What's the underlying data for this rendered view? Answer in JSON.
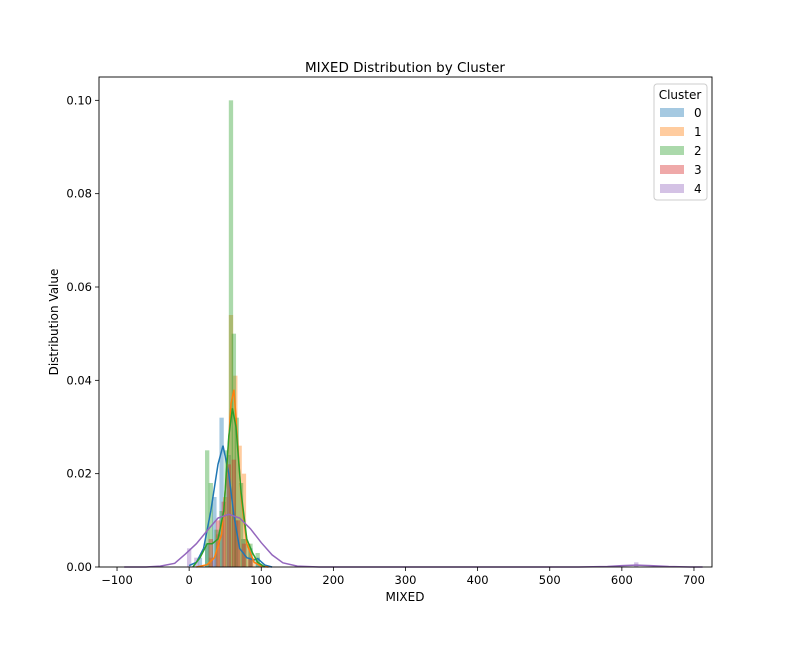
{
  "chart_data": {
    "type": "histogram",
    "title": "MIXED Distribution by Cluster",
    "xlabel": "MIXED",
    "ylabel": "Distribution Value",
    "xlim": [
      -125,
      725
    ],
    "ylim": [
      0,
      0.105
    ],
    "xticks": [
      -100,
      0,
      100,
      200,
      300,
      400,
      500,
      600,
      700
    ],
    "yticks": [
      0.0,
      0.02,
      0.04,
      0.06,
      0.08,
      0.1
    ],
    "xtick_labels": [
      "−100",
      "0",
      "100",
      "200",
      "300",
      "400",
      "500",
      "600",
      "700"
    ],
    "ytick_labels": [
      "0.00",
      "0.02",
      "0.04",
      "0.06",
      "0.08",
      "0.10"
    ],
    "grid": false,
    "legend": {
      "title": "Cluster",
      "position": "top-right"
    },
    "series": [
      {
        "name": "0",
        "color": "#1f77b4",
        "hist": [
          [
            15,
            0.002
          ],
          [
            25,
            0.005
          ],
          [
            35,
            0.015
          ],
          [
            45,
            0.032
          ],
          [
            55,
            0.024
          ],
          [
            65,
            0.01
          ],
          [
            75,
            0.006
          ],
          [
            85,
            0.004
          ],
          [
            95,
            0.002
          ]
        ],
        "kde": [
          [
            0,
            0.0003
          ],
          [
            10,
            0.001
          ],
          [
            20,
            0.004
          ],
          [
            30,
            0.012
          ],
          [
            40,
            0.022
          ],
          [
            47,
            0.026
          ],
          [
            55,
            0.02
          ],
          [
            62,
            0.011
          ],
          [
            70,
            0.004
          ],
          [
            80,
            0.002
          ],
          [
            90,
            0.0015
          ],
          [
            95,
            0.0018
          ],
          [
            105,
            0.0004
          ],
          [
            115,
            0
          ]
        ]
      },
      {
        "name": "1",
        "color": "#ff7f0e",
        "hist": [
          [
            30,
            0.002
          ],
          [
            40,
            0.007
          ],
          [
            50,
            0.015
          ],
          [
            58,
            0.054
          ],
          [
            64,
            0.041
          ],
          [
            70,
            0.026
          ],
          [
            76,
            0.02
          ],
          [
            82,
            0.005
          ],
          [
            88,
            0.002
          ]
        ],
        "kde": [
          [
            10,
            0
          ],
          [
            25,
            0.0005
          ],
          [
            35,
            0.002
          ],
          [
            45,
            0.007
          ],
          [
            52,
            0.02
          ],
          [
            58,
            0.035
          ],
          [
            62,
            0.038
          ],
          [
            66,
            0.03
          ],
          [
            72,
            0.015
          ],
          [
            80,
            0.005
          ],
          [
            90,
            0.001
          ],
          [
            100,
            0.0002
          ],
          [
            110,
            0
          ]
        ]
      },
      {
        "name": "2",
        "color": "#2ca02c",
        "hist": [
          [
            25,
            0.025
          ],
          [
            30,
            0.018
          ],
          [
            38,
            0.008
          ],
          [
            45,
            0.012
          ],
          [
            52,
            0.025
          ],
          [
            58,
            0.1
          ],
          [
            62,
            0.05
          ],
          [
            66,
            0.032
          ],
          [
            72,
            0.018
          ],
          [
            78,
            0.006
          ],
          [
            85,
            0.005
          ],
          [
            95,
            0.003
          ]
        ],
        "kde": [
          [
            5,
            0
          ],
          [
            15,
            0.002
          ],
          [
            25,
            0.005
          ],
          [
            32,
            0.005
          ],
          [
            40,
            0.006
          ],
          [
            48,
            0.012
          ],
          [
            55,
            0.028
          ],
          [
            60,
            0.034
          ],
          [
            65,
            0.03
          ],
          [
            72,
            0.016
          ],
          [
            80,
            0.006
          ],
          [
            88,
            0.003
          ],
          [
            95,
            0.001
          ],
          [
            105,
            0
          ]
        ]
      },
      {
        "name": "3",
        "color": "#d62728",
        "hist": [
          [
            30,
            0.006
          ],
          [
            40,
            0.01
          ],
          [
            48,
            0.014
          ],
          [
            55,
            0.022
          ],
          [
            62,
            0.023
          ],
          [
            68,
            0.01
          ],
          [
            76,
            0.005
          ],
          [
            85,
            0.002
          ]
        ],
        "kde": []
      },
      {
        "name": "4",
        "color": "#9467bd",
        "hist": [
          [
            0,
            0.004
          ],
          [
            10,
            0.002
          ],
          [
            35,
            0.002
          ],
          [
            620,
            0.001
          ]
        ],
        "kde": [
          [
            -90,
            0
          ],
          [
            -60,
            0
          ],
          [
            -40,
            0.0002
          ],
          [
            -20,
            0.0008
          ],
          [
            -5,
            0.0028
          ],
          [
            10,
            0.005
          ],
          [
            25,
            0.0078
          ],
          [
            40,
            0.0105
          ],
          [
            55,
            0.0113
          ],
          [
            70,
            0.0105
          ],
          [
            85,
            0.0082
          ],
          [
            100,
            0.0052
          ],
          [
            115,
            0.0026
          ],
          [
            130,
            0.0009
          ],
          [
            150,
            0.0002
          ],
          [
            180,
            0
          ],
          [
            540,
            0
          ],
          [
            580,
            0.0001
          ],
          [
            600,
            0.0003
          ],
          [
            620,
            0.0004
          ],
          [
            640,
            0.0003
          ],
          [
            665,
            0.0001
          ],
          [
            695,
            0
          ],
          [
            712,
            0
          ]
        ]
      }
    ]
  }
}
